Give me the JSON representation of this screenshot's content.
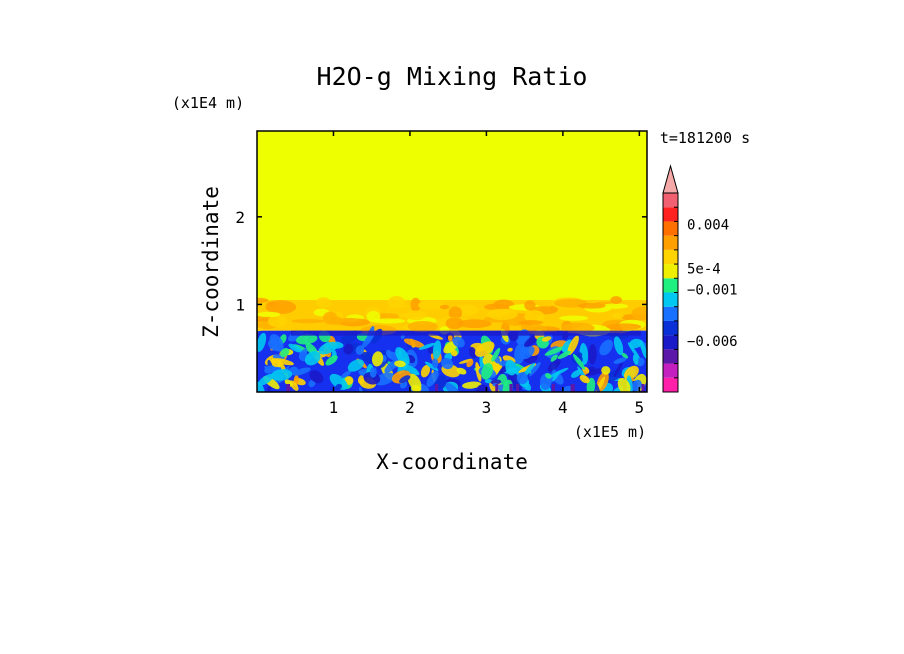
{
  "chart_data": {
    "type": "heatmap",
    "title": "H2O-g Mixing Ratio",
    "xlabel": "X-coordinate",
    "ylabel": "Z-coordinate",
    "x_scale_label": "(x1E5 m)",
    "y_scale_label": "(x1E4 m)",
    "time_label": "t=181200 s",
    "xlim": [
      0,
      5.1
    ],
    "ylim": [
      0,
      2.98
    ],
    "x_ticks": [
      1,
      2,
      3,
      4,
      5
    ],
    "y_ticks": [
      1,
      2
    ],
    "x_tick_labels": [
      "1",
      "2",
      "3",
      "4",
      "5"
    ],
    "y_tick_labels": [
      "1",
      "2"
    ],
    "layers": [
      {
        "name": "upper",
        "z_min": 1.05,
        "z_max": 2.98,
        "color": "#eeff00"
      },
      {
        "name": "transition",
        "z_min": 0.7,
        "z_max": 1.05,
        "color": "#ffcc00"
      },
      {
        "name": "boundary",
        "z_min": 0.0,
        "z_max": 0.7,
        "color": "#1530ee"
      }
    ],
    "colorbar": {
      "extend": "max",
      "levels": [
        {
          "color": "#ff1fa8"
        },
        {
          "color": "#c41fbf"
        },
        {
          "color": "#5c18a8"
        },
        {
          "color": "#1a1ac8"
        },
        {
          "color": "#0a30d8"
        },
        {
          "color": "#1870ff"
        },
        {
          "color": "#00c8f0"
        },
        {
          "color": "#20f080"
        },
        {
          "color": "#eef000"
        },
        {
          "color": "#ffd400"
        },
        {
          "color": "#ffa000"
        },
        {
          "color": "#ff7000"
        },
        {
          "color": "#ff2020"
        },
        {
          "color": "#f06070"
        }
      ],
      "extend_color": "#f5a8a8",
      "labels": [
        {
          "text": "0.004",
          "at": 0.004
        },
        {
          "text": "5e-4",
          "at": 0.0005
        },
        {
          "text": "−0.001",
          "at": -0.001
        },
        {
          "text": "−0.006",
          "at": -0.006
        }
      ]
    }
  }
}
